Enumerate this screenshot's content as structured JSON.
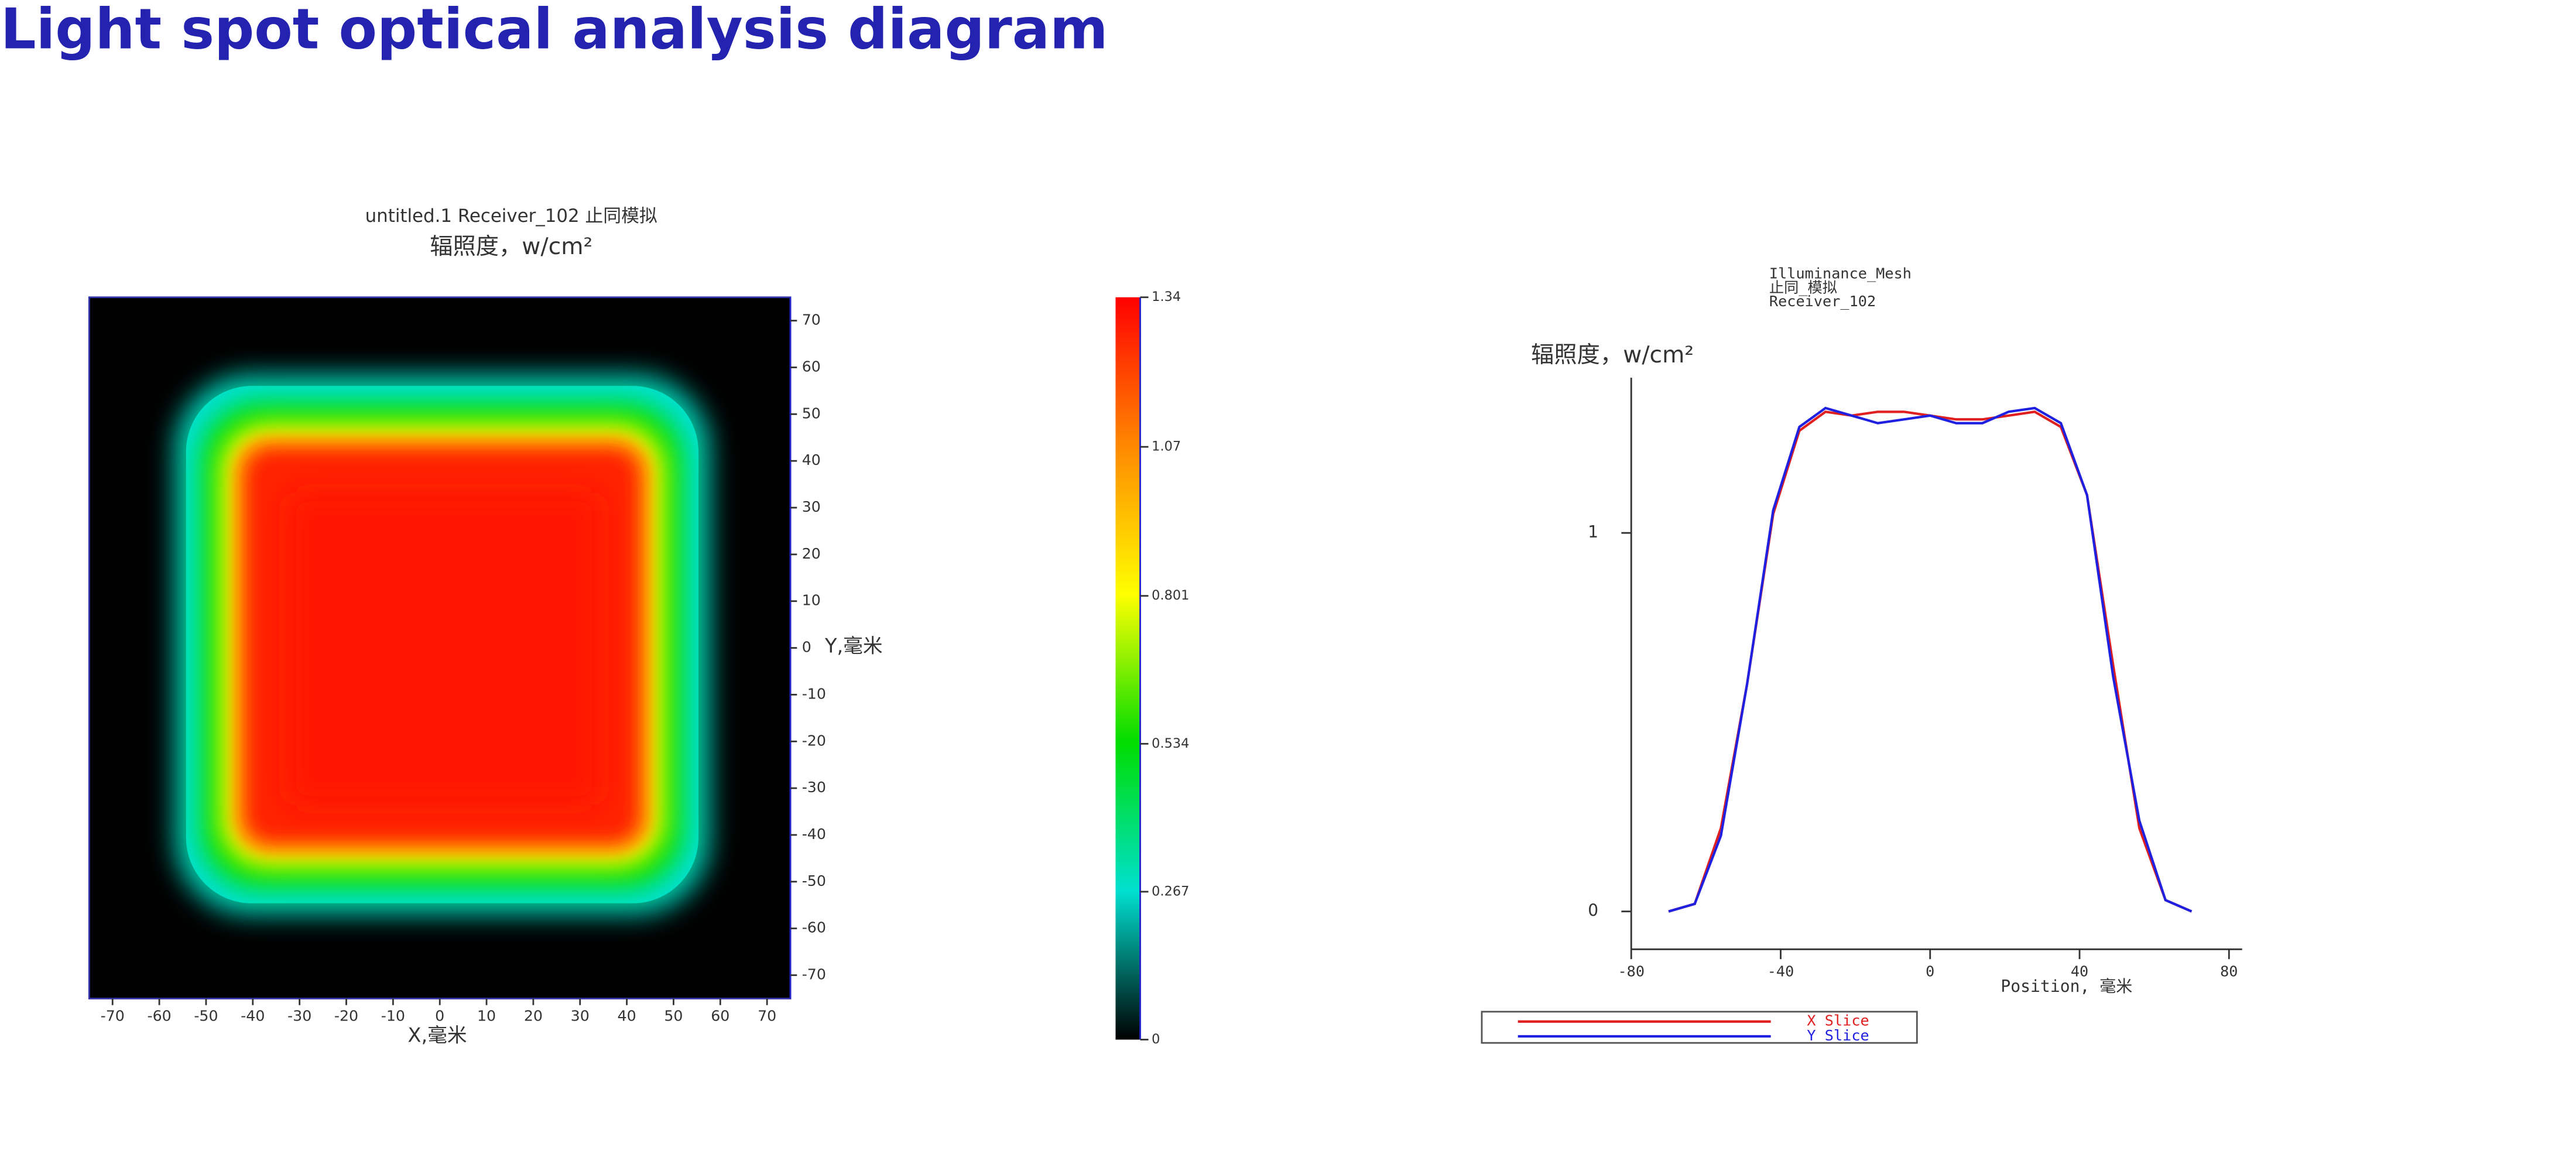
{
  "title": "Light spot optical analysis diagram",
  "chart_data": [
    {
      "type": "heatmap",
      "title": "untitled.1 Receiver_102 止同模拟",
      "subtitle": "辐照度，w/cm²",
      "x_label": "X,毫米",
      "y_label": "Y,毫米",
      "xlim": [
        -75,
        75
      ],
      "xticks": [
        -70,
        -60,
        -50,
        -40,
        -30,
        -20,
        -10,
        0,
        10,
        20,
        30,
        40,
        50,
        60,
        70
      ],
      "ylim": [
        -75,
        75
      ],
      "yticks": [
        -70,
        -60,
        -50,
        -40,
        -30,
        -20,
        -10,
        0,
        10,
        20,
        30,
        40,
        50,
        60,
        70
      ],
      "colorbar": {
        "lim": [
          0,
          1.34
        ],
        "ticks": [
          0,
          0.267,
          0.534,
          0.801,
          1.07,
          1.34
        ],
        "colors": [
          "#000000",
          "#00e0d0",
          "#00dd00",
          "#ffff00",
          "#ff8800",
          "#ff0000"
        ]
      }
    },
    {
      "type": "line",
      "title_lines": [
        "Illuminance_Mesh",
        "止同_模拟",
        "Receiver_102"
      ],
      "y_label": "辐照度，w/cm²",
      "x_label": "Position, 毫米",
      "xlim": [
        -80,
        80
      ],
      "xticks": [
        -80,
        -40,
        0,
        40,
        80
      ],
      "ylim": [
        -0.1,
        1.41
      ],
      "yticks": [
        0,
        1
      ],
      "legend": "bottom-left",
      "x": [
        -70,
        -63,
        -56,
        -49,
        -42,
        -35,
        -28,
        -21,
        -14,
        -7,
        0,
        7,
        14,
        21,
        28,
        35,
        42,
        49,
        56,
        63,
        70
      ],
      "series": [
        {
          "name": "X Slice",
          "color": "#e02020",
          "values": [
            0,
            0.02,
            0.22,
            0.6,
            1.05,
            1.27,
            1.32,
            1.31,
            1.32,
            1.32,
            1.31,
            1.3,
            1.3,
            1.31,
            1.32,
            1.28,
            1.1,
            0.65,
            0.22,
            0.03,
            0
          ]
        },
        {
          "name": "Y Slice",
          "color": "#2020e0",
          "values": [
            0,
            0.02,
            0.2,
            0.6,
            1.06,
            1.28,
            1.33,
            1.31,
            1.29,
            1.3,
            1.31,
            1.29,
            1.29,
            1.32,
            1.33,
            1.29,
            1.1,
            0.62,
            0.24,
            0.03,
            0
          ]
        }
      ]
    }
  ]
}
